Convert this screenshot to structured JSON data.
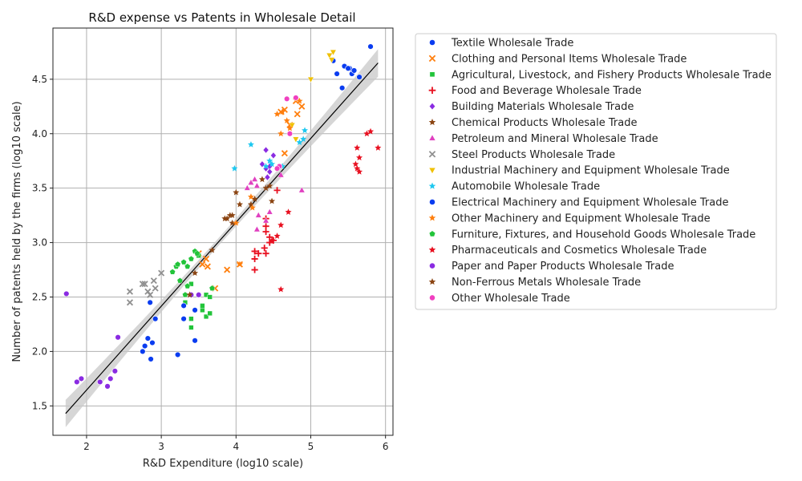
{
  "chart_data": {
    "type": "scatter",
    "title": "R&D expense vs Patents in Wholesale Detail",
    "xlabel": "R&D Expenditure (log10 scale)",
    "ylabel": "Number of patents held by the firms (log10 scale)",
    "xlim": [
      1.55,
      6.1
    ],
    "ylim": [
      1.23,
      4.97
    ],
    "xticks": [
      2,
      3,
      4,
      5,
      6
    ],
    "yticks": [
      1.5,
      2.0,
      2.5,
      3.0,
      3.5,
      4.0,
      4.5
    ],
    "ytick_labels": [
      "1.5",
      "2.0",
      "2.5",
      "3.0",
      "3.5",
      "4.0",
      "4.5"
    ],
    "grid": true,
    "legend_position": "outside-right",
    "regression": {
      "x": [
        1.72,
        5.9
      ],
      "y": [
        1.43,
        4.65
      ]
    },
    "series": [
      {
        "name": "Textile Wholesale Trade",
        "marker": "circle",
        "color": "#0a3cf0",
        "points": [
          [
            5.3,
            4.67
          ],
          [
            5.45,
            4.62
          ],
          [
            5.52,
            4.6
          ],
          [
            5.55,
            4.55
          ],
          [
            5.58,
            4.58
          ],
          [
            5.35,
            4.55
          ],
          [
            5.42,
            4.42
          ],
          [
            5.65,
            4.52
          ],
          [
            5.8,
            4.8
          ],
          [
            5.5,
            4.6
          ]
        ]
      },
      {
        "name": "Clothing and Personal Items Wholesale Trade",
        "marker": "x",
        "color": "#ff7f0e",
        "points": [
          [
            4.05,
            2.8
          ],
          [
            3.88,
            2.75
          ],
          [
            3.55,
            2.8
          ],
          [
            3.6,
            2.85
          ],
          [
            3.5,
            2.9
          ],
          [
            3.62,
            2.78
          ],
          [
            3.72,
            2.58
          ],
          [
            4.6,
            4.2
          ],
          [
            4.72,
            4.08
          ],
          [
            4.8,
            4.3
          ],
          [
            4.65,
            3.82
          ],
          [
            4.65,
            4.22
          ],
          [
            4.88,
            4.25
          ],
          [
            4.82,
            4.18
          ]
        ]
      },
      {
        "name": "Agricultural, Livestock, and Fishery Products Wholesale Trade",
        "marker": "square",
        "color": "#22c43a",
        "points": [
          [
            3.4,
            2.22
          ],
          [
            3.4,
            2.3
          ],
          [
            3.55,
            2.38
          ],
          [
            3.6,
            2.32
          ],
          [
            3.65,
            2.35
          ],
          [
            3.55,
            2.42
          ],
          [
            3.32,
            2.45
          ],
          [
            3.6,
            2.52
          ],
          [
            3.65,
            2.5
          ],
          [
            3.4,
            2.62
          ],
          [
            3.5,
            2.88
          ]
        ]
      },
      {
        "name": "Food and Beverage Wholesale Trade",
        "marker": "plus",
        "color": "#e81020",
        "points": [
          [
            4.25,
            2.85
          ],
          [
            4.25,
            2.92
          ],
          [
            4.3,
            2.9
          ],
          [
            4.45,
            3.0
          ],
          [
            4.4,
            3.15
          ],
          [
            4.4,
            3.22
          ],
          [
            4.5,
            3.02
          ],
          [
            4.4,
            2.9
          ],
          [
            4.38,
            2.95
          ],
          [
            4.25,
            2.75
          ],
          [
            4.55,
            3.48
          ],
          [
            4.45,
            3.05
          ],
          [
            4.4,
            3.1
          ]
        ]
      },
      {
        "name": "Building Materials Wholesale Trade",
        "marker": "diamond",
        "color": "#8a2be2",
        "points": [
          [
            4.4,
            3.85
          ],
          [
            4.45,
            3.7
          ],
          [
            4.5,
            3.8
          ],
          [
            4.35,
            3.72
          ],
          [
            4.42,
            3.6
          ],
          [
            4.45,
            3.65
          ],
          [
            4.4,
            3.68
          ]
        ]
      },
      {
        "name": "Chemical Products Wholesale Trade",
        "marker": "star",
        "color": "#8b4513",
        "points": [
          [
            3.85,
            3.22
          ],
          [
            3.95,
            3.25
          ],
          [
            4.0,
            3.46
          ],
          [
            4.05,
            3.35
          ],
          [
            4.2,
            3.35
          ],
          [
            4.25,
            3.4
          ],
          [
            4.35,
            3.58
          ],
          [
            4.4,
            3.5
          ],
          [
            4.48,
            3.38
          ],
          [
            3.95,
            3.18
          ]
        ]
      },
      {
        "name": "Petroleum and Mineral Wholesale Trade",
        "marker": "triangle",
        "color": "#e040c0",
        "points": [
          [
            4.15,
            3.5
          ],
          [
            4.2,
            3.55
          ],
          [
            4.25,
            3.58
          ],
          [
            4.28,
            3.52
          ],
          [
            4.3,
            3.25
          ],
          [
            4.4,
            3.2
          ],
          [
            4.45,
            3.28
          ],
          [
            4.28,
            3.12
          ],
          [
            4.88,
            3.48
          ],
          [
            4.6,
            3.62
          ]
        ]
      },
      {
        "name": "Steel Products Wholesale Trade",
        "marker": "x",
        "color": "#909090",
        "points": [
          [
            2.58,
            2.45
          ],
          [
            2.58,
            2.55
          ],
          [
            2.75,
            2.62
          ],
          [
            2.78,
            2.62
          ],
          [
            2.85,
            2.52
          ],
          [
            2.9,
            2.65
          ],
          [
            2.92,
            2.58
          ],
          [
            3.0,
            2.72
          ],
          [
            2.82,
            2.55
          ]
        ]
      },
      {
        "name": "Industrial Machinery and Equipment Wholesale Trade",
        "marker": "triangle-down",
        "color": "#f0c000",
        "points": [
          [
            5.25,
            4.72
          ],
          [
            5.3,
            4.75
          ],
          [
            5.28,
            4.68
          ],
          [
            5.0,
            4.5
          ],
          [
            4.75,
            4.08
          ],
          [
            4.8,
            3.95
          ]
        ]
      },
      {
        "name": "Automobile Wholesale Trade",
        "marker": "star",
        "color": "#1ec8f0",
        "points": [
          [
            3.98,
            3.68
          ],
          [
            4.2,
            3.9
          ],
          [
            4.45,
            3.75
          ],
          [
            4.48,
            3.72
          ],
          [
            4.4,
            3.7
          ],
          [
            4.9,
            3.95
          ],
          [
            4.92,
            4.03
          ],
          [
            4.62,
            3.7
          ],
          [
            4.85,
            3.92
          ]
        ]
      },
      {
        "name": "Electrical Machinery and Equipment Wholesale Trade",
        "marker": "circle",
        "color": "#0a3cf0",
        "points": [
          [
            2.85,
            2.45
          ],
          [
            2.92,
            2.3
          ],
          [
            2.75,
            2.0
          ],
          [
            2.78,
            2.05
          ],
          [
            2.82,
            2.12
          ],
          [
            2.88,
            2.08
          ],
          [
            2.86,
            1.93
          ],
          [
            3.22,
            1.97
          ],
          [
            3.3,
            2.3
          ],
          [
            3.3,
            2.42
          ],
          [
            3.45,
            2.38
          ],
          [
            3.45,
            2.1
          ]
        ]
      },
      {
        "name": "Other Machinery and Equipment Wholesale Trade",
        "marker": "star",
        "color": "#ff7f0e",
        "points": [
          [
            4.05,
            2.8
          ],
          [
            4.0,
            3.18
          ],
          [
            4.2,
            3.42
          ],
          [
            4.22,
            3.32
          ],
          [
            4.6,
            4.0
          ],
          [
            4.62,
            4.2
          ],
          [
            4.68,
            4.12
          ],
          [
            4.85,
            4.3
          ],
          [
            4.55,
            4.18
          ],
          [
            4.72,
            4.05
          ]
        ]
      },
      {
        "name": "Furniture, Fixtures, and Household Goods Wholesale Trade",
        "marker": "pentagon",
        "color": "#22c43a",
        "points": [
          [
            3.15,
            2.73
          ],
          [
            3.2,
            2.78
          ],
          [
            3.22,
            2.8
          ],
          [
            3.3,
            2.82
          ],
          [
            3.35,
            2.78
          ],
          [
            3.4,
            2.85
          ],
          [
            3.45,
            2.92
          ],
          [
            3.48,
            2.9
          ],
          [
            3.25,
            2.65
          ],
          [
            3.35,
            2.6
          ],
          [
            3.68,
            2.58
          ],
          [
            3.32,
            2.52
          ]
        ]
      },
      {
        "name": "Pharmaceuticals and Cosmetics Wholesale Trade",
        "marker": "star",
        "color": "#e81020",
        "points": [
          [
            5.75,
            4.0
          ],
          [
            5.8,
            4.02
          ],
          [
            5.9,
            3.87
          ],
          [
            5.62,
            3.87
          ],
          [
            5.65,
            3.78
          ],
          [
            5.6,
            3.72
          ],
          [
            5.62,
            3.68
          ],
          [
            5.65,
            3.65
          ],
          [
            4.7,
            3.28
          ],
          [
            4.6,
            3.16
          ],
          [
            4.55,
            3.06
          ],
          [
            4.6,
            2.57
          ],
          [
            4.48,
            3.02
          ]
        ]
      },
      {
        "name": "Paper and Paper Products Wholesale Trade",
        "marker": "circle",
        "color": "#8a2be2",
        "points": [
          [
            1.73,
            2.53
          ],
          [
            1.87,
            1.72
          ],
          [
            1.93,
            1.75
          ],
          [
            2.18,
            1.72
          ],
          [
            2.28,
            1.68
          ],
          [
            2.32,
            1.75
          ],
          [
            2.38,
            1.82
          ],
          [
            2.42,
            2.13
          ],
          [
            3.5,
            2.52
          ],
          [
            3.4,
            2.52
          ]
        ]
      },
      {
        "name": "Non-Ferrous Metals Wholesale Trade",
        "marker": "star",
        "color": "#8b4513",
        "points": [
          [
            3.68,
            2.93
          ],
          [
            3.92,
            3.25
          ],
          [
            3.88,
            3.22
          ],
          [
            3.38,
            2.52
          ],
          [
            3.45,
            2.72
          ],
          [
            4.45,
            3.52
          ]
        ]
      },
      {
        "name": "Other Wholesale Trade",
        "marker": "circle",
        "color": "#f040c0",
        "points": [
          [
            4.68,
            4.32
          ],
          [
            4.8,
            4.33
          ],
          [
            4.72,
            4.0
          ],
          [
            4.58,
            3.7
          ],
          [
            4.55,
            3.68
          ]
        ]
      }
    ]
  }
}
